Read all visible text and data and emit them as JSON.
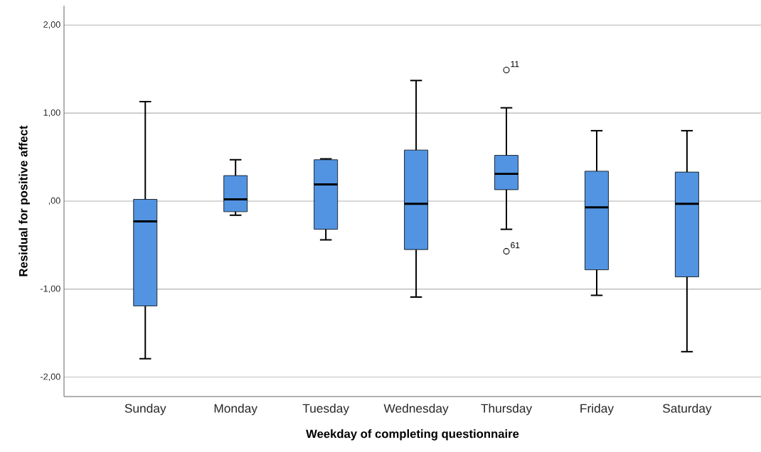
{
  "chart_data": {
    "type": "box",
    "xlabel": "Weekday of completing questionnaire",
    "ylabel": "Residual for positive affect",
    "categories": [
      "Sunday",
      "Monday",
      "Tuesday",
      "Wednesday",
      "Thursday",
      "Friday",
      "Saturday"
    ],
    "color": "#5294e2",
    "boxes": [
      {
        "low": -1.79,
        "q1": -1.19,
        "median": -0.23,
        "q3": 0.02,
        "high": 1.13
      },
      {
        "low": -0.16,
        "q1": -0.12,
        "median": 0.02,
        "q3": 0.29,
        "high": 0.47
      },
      {
        "low": -0.44,
        "q1": -0.32,
        "median": 0.19,
        "q3": 0.47,
        "high": 0.48
      },
      {
        "low": -1.09,
        "q1": -0.55,
        "median": -0.03,
        "q3": 0.58,
        "high": 1.37
      },
      {
        "low": -0.32,
        "q1": 0.13,
        "median": 0.31,
        "q3": 0.52,
        "high": 1.06,
        "outliers": [
          1.49,
          -0.57
        ]
      },
      {
        "low": -1.07,
        "q1": -0.78,
        "median": -0.07,
        "q3": 0.34,
        "high": 0.8
      },
      {
        "low": -1.71,
        "q1": -0.86,
        "median": -0.03,
        "q3": 0.33,
        "high": 0.8
      }
    ],
    "ylim": [
      -2.22,
      2.22
    ],
    "yticks": [
      {
        "value": -2,
        "label": "-2,00"
      },
      {
        "value": -1,
        "label": "-1,00"
      },
      {
        "value": 0,
        "label": ",00"
      },
      {
        "value": 1,
        "label": "1,00"
      },
      {
        "value": 2,
        "label": "2,00"
      }
    ],
    "grid": "y",
    "annotations": [
      "11",
      "61"
    ]
  }
}
